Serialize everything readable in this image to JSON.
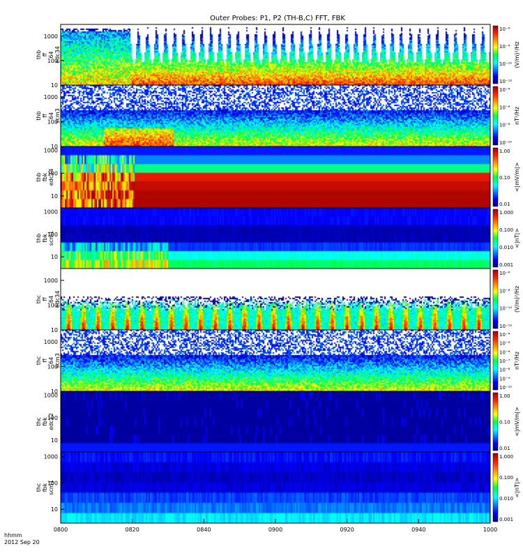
{
  "chart_data": {
    "type": "heatmap",
    "title": "Outer Probes: P1, P2 (TH-B,C) FFT, FBK",
    "x_tick_labels": [
      "0800",
      "0820",
      "0840",
      "0900",
      "0920",
      "0940",
      "1000"
    ],
    "x_label_lines": [
      "hhmm",
      "2012 Sep 20"
    ],
    "panels": [
      {
        "label_lines": [
          "thb",
          "ff",
          "64",
          "edc34"
        ],
        "y_tick_labels": [
          "10",
          "100",
          "1000"
        ],
        "y_range": [
          10,
          3000
        ],
        "colorbar_tick_labels": [
          "10⁻¹²",
          "10⁻¹⁰",
          "10⁻⁸",
          "10⁻⁶"
        ],
        "colorbar_label": "(V/m)²/Hz"
      },
      {
        "label_lines": [
          "thb",
          "ff",
          "64",
          "scm3"
        ],
        "y_tick_labels": [
          "10",
          "100",
          "1000"
        ],
        "y_range": [
          10,
          3000
        ],
        "colorbar_tick_labels": [
          "10⁻¹⁰",
          "10⁻⁸",
          "10⁻⁶",
          "10⁻⁴"
        ],
        "colorbar_label": "nT²/Hz"
      },
      {
        "label_lines": [
          "thb",
          "fbk",
          "edc34"
        ],
        "y_tick_labels": [
          "10",
          "100",
          "1000"
        ],
        "y_range": [
          3,
          1500
        ],
        "colorbar_tick_labels": [
          "0.01",
          "0.10",
          "1.00"
        ],
        "colorbar_label": "<|mV/m|>"
      },
      {
        "label_lines": [
          "thb",
          "fbk",
          "scm1"
        ],
        "y_tick_labels": [
          "10",
          "100",
          "1000"
        ],
        "y_range": [
          3,
          1500
        ],
        "colorbar_tick_labels": [
          "0.001",
          "0.010",
          "0.100",
          "1.000"
        ],
        "colorbar_label": "<|nT|>"
      },
      {
        "label_lines": [
          "thc",
          "ff",
          "64",
          "edc34"
        ],
        "y_tick_labels": [
          "10",
          "100",
          "1000"
        ],
        "y_range": [
          10,
          3000
        ],
        "colorbar_tick_labels": [
          "10⁻¹²",
          "10⁻¹⁰",
          "10⁻⁸",
          "10⁻⁶"
        ],
        "colorbar_label": "(V/m)²/Hz"
      },
      {
        "label_lines": [
          "thc",
          "ff",
          "64",
          "scm3"
        ],
        "y_tick_labels": [
          "10",
          "100",
          "1000"
        ],
        "y_range": [
          10,
          3000
        ],
        "colorbar_tick_labels": [
          "10⁻¹⁰",
          "10⁻⁹",
          "10⁻⁸",
          "10⁻⁷",
          "10⁻⁶",
          "10⁻⁵",
          "10⁻⁴"
        ],
        "colorbar_label": "nT²/Hz"
      },
      {
        "label_lines": [
          "thc",
          "fbk",
          "edc12"
        ],
        "y_tick_labels": [
          "10",
          "100",
          "1000"
        ],
        "y_range": [
          3,
          1500
        ],
        "colorbar_tick_labels": [
          "0.01",
          "0.10",
          "1.00"
        ],
        "colorbar_label": "<|mV/m|>"
      },
      {
        "label_lines": [
          "thc",
          "fbk",
          "scm1"
        ],
        "y_tick_labels": [
          "10",
          "100",
          "1000"
        ],
        "y_range": [
          3,
          1500
        ],
        "colorbar_tick_labels": [
          "0.001",
          "0.010",
          "0.100",
          "1.000"
        ],
        "colorbar_label": "<|nT|>"
      }
    ]
  }
}
